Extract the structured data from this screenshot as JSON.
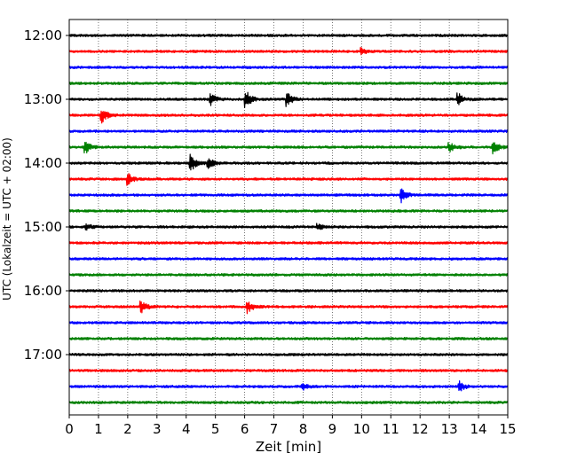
{
  "chart_data": {
    "type": "line",
    "chart_kind": "helicorder",
    "title": "",
    "xlabel": "Zeit  [min]",
    "ylabel": "UTC (Lokalzeit = UTC + 02:00)",
    "xlim": [
      0,
      15
    ],
    "x_ticks": [
      0,
      1,
      2,
      3,
      4,
      5,
      6,
      7,
      8,
      9,
      10,
      11,
      12,
      13,
      14,
      15
    ],
    "x_tick_labels": [
      "0",
      "1",
      "2",
      "3",
      "4",
      "5",
      "6",
      "7",
      "8",
      "9",
      "10",
      "11",
      "12",
      "13",
      "14",
      "15"
    ],
    "grid": "vertical dotted",
    "trace_minutes": 15,
    "trace_colors": [
      "#000000",
      "#ff0000",
      "#0000ff",
      "#008000"
    ],
    "traces": [
      {
        "start": "12:00",
        "label": "12:00"
      },
      {
        "start": "12:15",
        "label": ""
      },
      {
        "start": "12:30",
        "label": ""
      },
      {
        "start": "12:45",
        "label": ""
      },
      {
        "start": "13:00",
        "label": "13:00"
      },
      {
        "start": "13:15",
        "label": ""
      },
      {
        "start": "13:30",
        "label": ""
      },
      {
        "start": "13:45",
        "label": ""
      },
      {
        "start": "14:00",
        "label": "14:00"
      },
      {
        "start": "14:15",
        "label": ""
      },
      {
        "start": "14:30",
        "label": ""
      },
      {
        "start": "14:45",
        "label": ""
      },
      {
        "start": "15:00",
        "label": "15:00"
      },
      {
        "start": "15:15",
        "label": ""
      },
      {
        "start": "15:30",
        "label": ""
      },
      {
        "start": "15:45",
        "label": ""
      },
      {
        "start": "16:00",
        "label": "16:00"
      },
      {
        "start": "16:15",
        "label": ""
      },
      {
        "start": "16:30",
        "label": ""
      },
      {
        "start": "16:45",
        "label": ""
      },
      {
        "start": "17:00",
        "label": "17:00"
      },
      {
        "start": "17:15",
        "label": ""
      },
      {
        "start": "17:30",
        "label": ""
      },
      {
        "start": "17:45",
        "label": ""
      }
    ],
    "events": [
      {
        "trace": 1,
        "minute": 10.0,
        "amplitude": 0.25
      },
      {
        "trace": 4,
        "minute": 4.85,
        "amplitude": 0.45
      },
      {
        "trace": 4,
        "minute": 6.05,
        "amplitude": 0.7
      },
      {
        "trace": 4,
        "minute": 7.45,
        "amplitude": 0.65
      },
      {
        "trace": 4,
        "minute": 13.3,
        "amplitude": 0.5
      },
      {
        "trace": 5,
        "minute": 1.1,
        "amplitude": 0.7
      },
      {
        "trace": 7,
        "minute": 0.55,
        "amplitude": 0.55
      },
      {
        "trace": 7,
        "minute": 13.0,
        "amplitude": 0.45
      },
      {
        "trace": 7,
        "minute": 14.5,
        "amplitude": 0.55
      },
      {
        "trace": 8,
        "minute": 4.15,
        "amplitude": 0.75
      },
      {
        "trace": 8,
        "minute": 4.75,
        "amplitude": 0.45
      },
      {
        "trace": 9,
        "minute": 2.0,
        "amplitude": 0.5
      },
      {
        "trace": 10,
        "minute": 11.35,
        "amplitude": 0.6
      },
      {
        "trace": 12,
        "minute": 0.6,
        "amplitude": 0.25
      },
      {
        "trace": 12,
        "minute": 8.5,
        "amplitude": 0.25
      },
      {
        "trace": 17,
        "minute": 2.45,
        "amplitude": 0.55
      },
      {
        "trace": 17,
        "minute": 6.1,
        "amplitude": 0.5
      },
      {
        "trace": 22,
        "minute": 8.0,
        "amplitude": 0.25
      },
      {
        "trace": 22,
        "minute": 13.35,
        "amplitude": 0.4
      }
    ]
  }
}
